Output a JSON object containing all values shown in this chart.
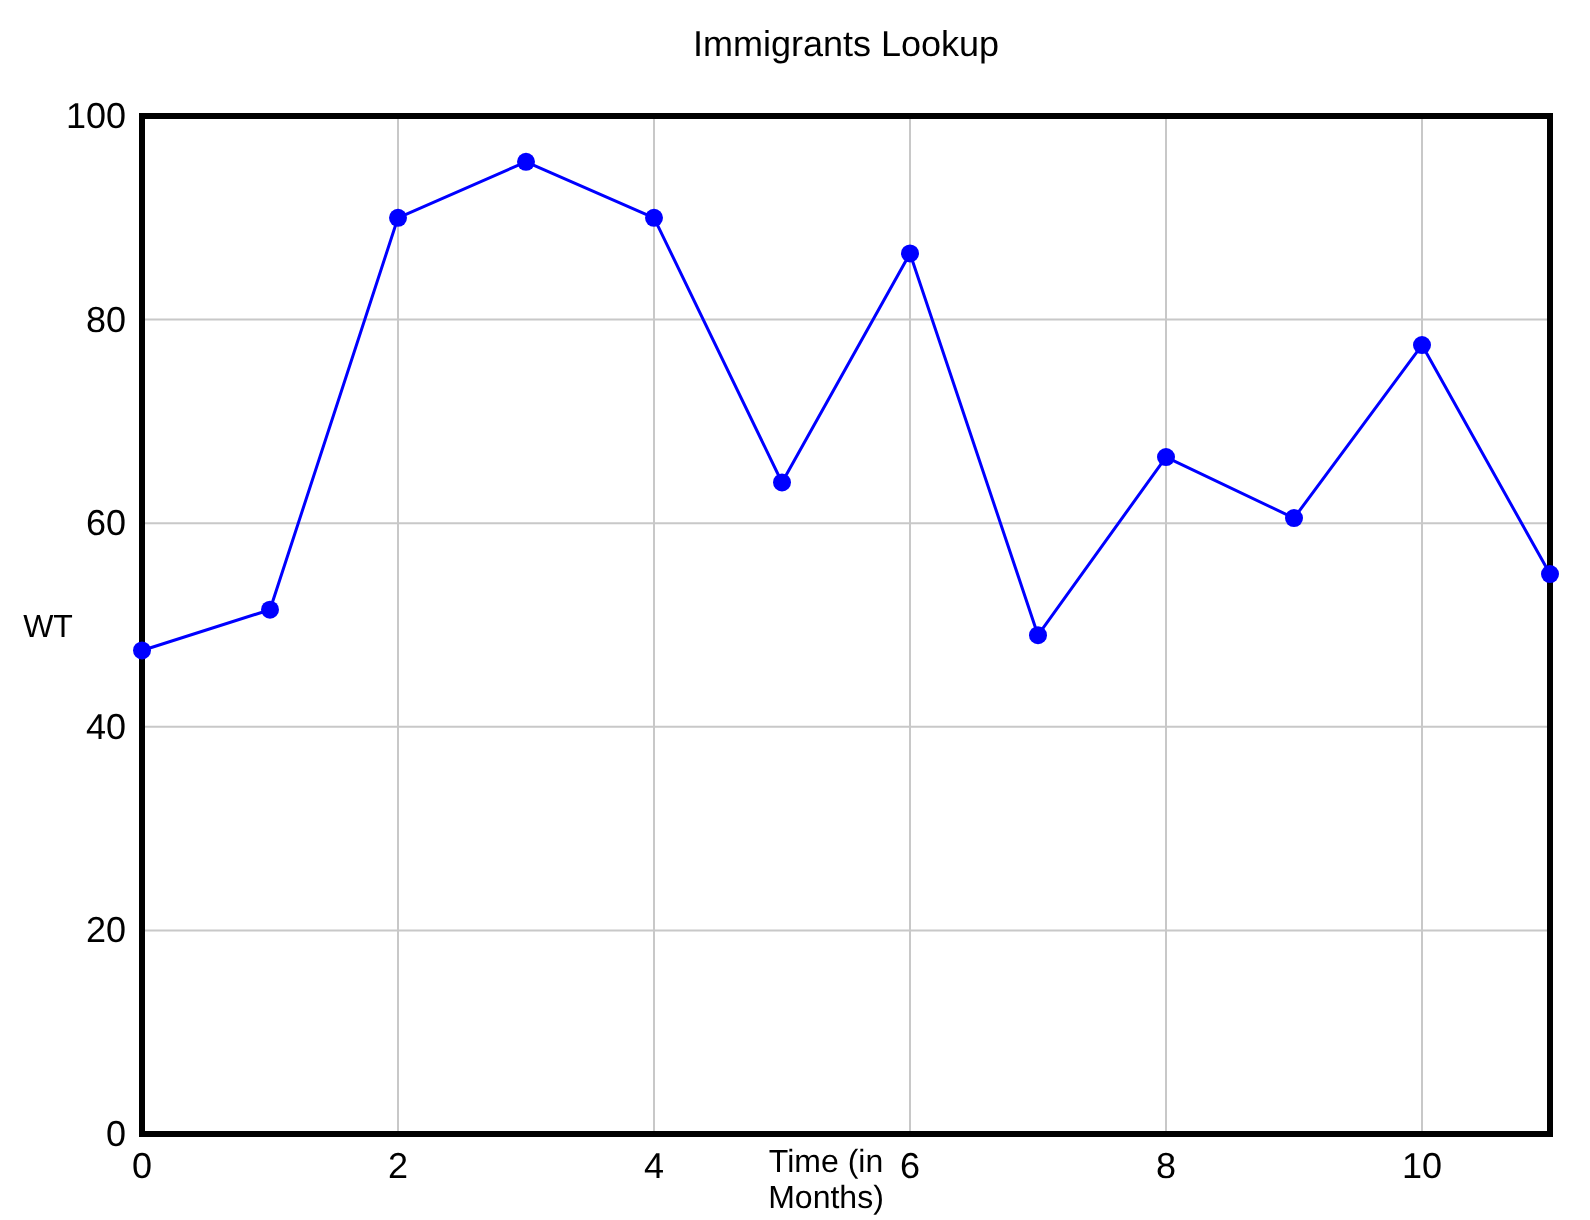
{
  "chart_data": {
    "type": "line",
    "title": "Immigrants Lookup",
    "xlabel": "Time (in Months)",
    "ylabel": "WT",
    "x": [
      0,
      1,
      2,
      3,
      4,
      5,
      6,
      7,
      8,
      9,
      10,
      11
    ],
    "series": [
      {
        "color": "#0000ff",
        "values": [
          47.5,
          51.5,
          90,
          95.5,
          90,
          64,
          86.5,
          49,
          66.5,
          60.5,
          77.5,
          55
        ]
      }
    ],
    "xlim": [
      0,
      11
    ],
    "xticks": [
      0,
      2,
      4,
      6,
      8,
      10
    ],
    "ylim": [
      0,
      100
    ],
    "yticks": [
      0,
      20,
      40,
      60,
      80,
      100
    ],
    "grid": true,
    "marker": "circle",
    "line_style": "solid"
  }
}
